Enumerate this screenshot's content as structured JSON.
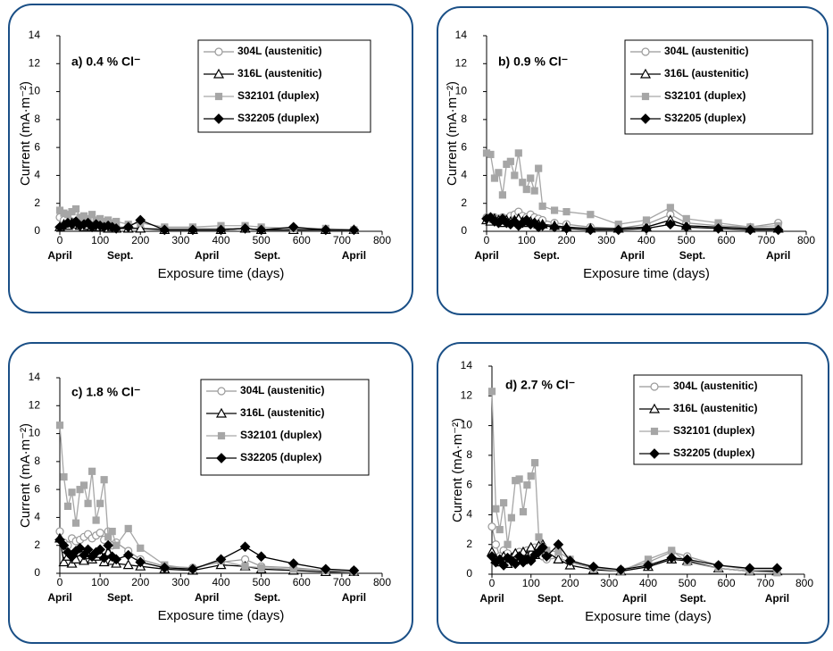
{
  "chart_data": [
    {
      "type": "line",
      "annotation": "a) 0.4 % Cl⁻",
      "x_label": "Exposure time (days)",
      "y_label": "Current (mA·m⁻²)",
      "x": [
        0,
        10,
        20,
        30,
        40,
        50,
        60,
        70,
        80,
        90,
        100,
        110,
        120,
        130,
        140,
        170,
        200,
        260,
        330,
        400,
        460,
        500,
        580,
        660,
        730
      ],
      "xlim": [
        0,
        800
      ],
      "xticks": [
        0,
        100,
        200,
        300,
        400,
        500,
        600,
        700,
        800
      ],
      "ylim": [
        0,
        14
      ],
      "yticks": [
        0,
        2,
        4,
        6,
        8,
        10,
        12,
        14
      ],
      "period_ticks": [
        {
          "value": 0,
          "label": "April"
        },
        {
          "value": 150,
          "label": "Sept."
        },
        {
          "value": 365,
          "label": "April"
        },
        {
          "value": 515,
          "label": "Sept."
        },
        {
          "value": 730,
          "label": "April"
        }
      ],
      "series": [
        {
          "name": "304L (austenitic)",
          "color": "#999999",
          "marker": "circle",
          "filled": false,
          "values": [
            1.0,
            0.8,
            0.6,
            0.7,
            0.6,
            0.5,
            0.5,
            0.4,
            0.4,
            0.4,
            0.3,
            0.4,
            0.3,
            0.3,
            0.3,
            0.3,
            0.2,
            0.2,
            0.2,
            0.2,
            0.2,
            0.1,
            0.1,
            0.1,
            0.1
          ]
        },
        {
          "name": "316L (austenitic)",
          "color": "#000000",
          "marker": "triangle",
          "filled": false,
          "values": [
            0.3,
            0.5,
            0.4,
            0.6,
            0.5,
            0.4,
            0.3,
            0.4,
            0.3,
            0.4,
            0.3,
            0.3,
            0.2,
            0.3,
            0.2,
            0.2,
            0.2,
            0.1,
            0.1,
            0.1,
            0.2,
            0.1,
            0.1,
            0.1,
            0.1
          ]
        },
        {
          "name": "S32101 (duplex)",
          "color": "#a6a6a6",
          "marker": "square",
          "filled": true,
          "values": [
            1.5,
            1.3,
            1.2,
            1.4,
            1.6,
            1.0,
            1.1,
            0.9,
            1.2,
            0.8,
            0.9,
            0.7,
            0.8,
            0.6,
            0.7,
            0.5,
            0.6,
            0.3,
            0.3,
            0.4,
            0.4,
            0.3,
            0.2,
            0.2,
            0.1
          ]
        },
        {
          "name": "S32205 (duplex)",
          "color": "#000000",
          "marker": "diamond",
          "filled": true,
          "values": [
            0.3,
            0.4,
            0.6,
            0.5,
            0.7,
            0.4,
            0.5,
            0.6,
            0.3,
            0.5,
            0.4,
            0.3,
            0.4,
            0.3,
            0.2,
            0.3,
            0.8,
            0.1,
            0.1,
            0.1,
            0.2,
            0.1,
            0.3,
            0.1,
            0.1
          ]
        }
      ]
    },
    {
      "type": "line",
      "annotation": "b) 0.9 % Cl⁻",
      "x_label": "Exposure time (days)",
      "y_label": "Current (mA·m⁻²)",
      "x": [
        0,
        10,
        20,
        30,
        40,
        50,
        60,
        70,
        80,
        90,
        100,
        110,
        120,
        130,
        140,
        170,
        200,
        260,
        330,
        400,
        460,
        500,
        580,
        660,
        730
      ],
      "xlim": [
        0,
        800
      ],
      "xticks": [
        0,
        100,
        200,
        300,
        400,
        500,
        600,
        700,
        800
      ],
      "ylim": [
        0,
        14
      ],
      "yticks": [
        0,
        2,
        4,
        6,
        8,
        10,
        12,
        14
      ],
      "period_ticks": [
        {
          "value": 0,
          "label": "April"
        },
        {
          "value": 150,
          "label": "Sept."
        },
        {
          "value": 365,
          "label": "April"
        },
        {
          "value": 515,
          "label": "Sept."
        },
        {
          "value": 730,
          "label": "April"
        }
      ],
      "series": [
        {
          "name": "304L (austenitic)",
          "color": "#999999",
          "marker": "circle",
          "filled": false,
          "values": [
            1.0,
            0.9,
            1.0,
            0.9,
            1.0,
            0.9,
            1.1,
            1.2,
            1.4,
            1.1,
            1.0,
            1.2,
            1.0,
            0.9,
            0.8,
            0.6,
            0.5,
            0.3,
            0.2,
            0.5,
            1.2,
            0.6,
            0.4,
            0.3,
            0.6
          ]
        },
        {
          "name": "316L (austenitic)",
          "color": "#000000",
          "marker": "triangle",
          "filled": false,
          "values": [
            0.8,
            0.7,
            0.9,
            0.8,
            0.6,
            0.8,
            0.7,
            0.8,
            0.9,
            0.7,
            0.6,
            0.7,
            0.6,
            0.5,
            0.5,
            0.4,
            0.3,
            0.2,
            0.2,
            0.3,
            0.8,
            0.4,
            0.3,
            0.2,
            0.2
          ]
        },
        {
          "name": "S32101 (duplex)",
          "color": "#a6a6a6",
          "marker": "square",
          "filled": true,
          "values": [
            5.6,
            5.5,
            3.8,
            4.2,
            2.6,
            4.8,
            5.0,
            4.0,
            5.6,
            3.5,
            3.0,
            3.8,
            2.9,
            4.5,
            1.8,
            1.5,
            1.4,
            1.2,
            0.5,
            0.8,
            1.7,
            0.9,
            0.6,
            0.3,
            0.4
          ]
        },
        {
          "name": "S32205 (duplex)",
          "color": "#000000",
          "marker": "diamond",
          "filled": true,
          "values": [
            0.9,
            1.0,
            0.7,
            0.6,
            0.9,
            0.6,
            0.5,
            0.7,
            0.4,
            0.6,
            0.8,
            0.5,
            0.6,
            0.3,
            0.4,
            0.3,
            0.2,
            0.1,
            0.1,
            0.2,
            0.5,
            0.3,
            0.2,
            0.1,
            0.1
          ]
        }
      ]
    },
    {
      "type": "line",
      "annotation": "c) 1.8 % Cl⁻",
      "x_label": "Exposure time (days)",
      "y_label": "Current (mA·m⁻²)",
      "x": [
        0,
        10,
        20,
        30,
        40,
        50,
        60,
        70,
        80,
        90,
        100,
        110,
        120,
        130,
        140,
        170,
        200,
        260,
        330,
        400,
        460,
        500,
        580,
        660,
        730
      ],
      "xlim": [
        0,
        800
      ],
      "xticks": [
        0,
        100,
        200,
        300,
        400,
        500,
        600,
        700,
        800
      ],
      "ylim": [
        0,
        14
      ],
      "yticks": [
        0,
        2,
        4,
        6,
        8,
        10,
        12,
        14
      ],
      "period_ticks": [
        {
          "value": 0,
          "label": "April"
        },
        {
          "value": 150,
          "label": "Sept."
        },
        {
          "value": 365,
          "label": "April"
        },
        {
          "value": 515,
          "label": "Sept."
        },
        {
          "value": 730,
          "label": "April"
        }
      ],
      "series": [
        {
          "name": "304L (austenitic)",
          "color": "#999999",
          "marker": "circle",
          "filled": false,
          "values": [
            3.0,
            2.2,
            2.0,
            2.5,
            2.3,
            2.4,
            2.6,
            2.8,
            2.5,
            2.7,
            2.9,
            2.4,
            3.0,
            2.0,
            2.2,
            1.6,
            1.0,
            0.5,
            0.4,
            0.8,
            1.0,
            0.5,
            0.4,
            0.2,
            0.2
          ]
        },
        {
          "name": "316L (austenitic)",
          "color": "#000000",
          "marker": "triangle",
          "filled": false,
          "values": [
            2.5,
            0.8,
            1.2,
            0.7,
            1.0,
            1.5,
            0.9,
            1.3,
            1.0,
            1.2,
            1.4,
            0.8,
            1.5,
            0.9,
            0.7,
            0.6,
            0.5,
            0.3,
            0.2,
            0.6,
            0.5,
            0.3,
            0.2,
            0.1,
            0.1
          ]
        },
        {
          "name": "S32101 (duplex)",
          "color": "#a6a6a6",
          "marker": "square",
          "filled": true,
          "values": [
            10.6,
            6.9,
            4.8,
            5.8,
            3.6,
            6.0,
            6.3,
            5.0,
            7.3,
            3.8,
            5.0,
            6.7,
            2.6,
            3.0,
            2.0,
            3.2,
            1.8,
            0.6,
            0.3,
            0.9,
            0.5,
            0.4,
            0.3,
            0.2,
            0.1
          ]
        },
        {
          "name": "S32205 (duplex)",
          "color": "#000000",
          "marker": "diamond",
          "filled": true,
          "values": [
            2.4,
            2.0,
            1.5,
            1.2,
            1.6,
            1.8,
            1.3,
            1.7,
            1.2,
            1.5,
            1.7,
            1.1,
            2.0,
            1.2,
            1.0,
            1.3,
            0.8,
            0.4,
            0.3,
            1.0,
            1.9,
            1.2,
            0.7,
            0.3,
            0.2
          ]
        }
      ]
    },
    {
      "type": "line",
      "annotation": "d) 2.7 % Cl⁻",
      "x_label": "Exposure time (days)",
      "y_label": "Current (mA·m⁻²)",
      "x": [
        0,
        10,
        20,
        30,
        40,
        50,
        60,
        70,
        80,
        90,
        100,
        110,
        120,
        130,
        140,
        170,
        200,
        260,
        330,
        400,
        460,
        500,
        580,
        660,
        730
      ],
      "xlim": [
        0,
        800
      ],
      "xticks": [
        0,
        100,
        200,
        300,
        400,
        500,
        600,
        700,
        800
      ],
      "ylim": [
        0,
        14
      ],
      "yticks": [
        0,
        2,
        4,
        6,
        8,
        10,
        12,
        14
      ],
      "period_ticks": [
        {
          "value": 0,
          "label": "April"
        },
        {
          "value": 150,
          "label": "Sept."
        },
        {
          "value": 365,
          "label": "April"
        },
        {
          "value": 515,
          "label": "Sept."
        },
        {
          "value": 730,
          "label": "April"
        }
      ],
      "series": [
        {
          "name": "304L (austenitic)",
          "color": "#999999",
          "marker": "circle",
          "filled": false,
          "values": [
            3.2,
            2.0,
            1.2,
            1.6,
            1.4,
            1.0,
            1.3,
            1.5,
            1.2,
            1.6,
            1.3,
            1.8,
            1.4,
            1.2,
            1.0,
            1.1,
            0.8,
            0.4,
            0.3,
            0.8,
            1.5,
            1.2,
            0.6,
            0.3,
            0.3
          ]
        },
        {
          "name": "316L (austenitic)",
          "color": "#000000",
          "marker": "triangle",
          "filled": false,
          "values": [
            1.5,
            1.0,
            0.8,
            1.2,
            0.7,
            1.1,
            1.4,
            1.0,
            1.5,
            1.2,
            1.8,
            1.3,
            1.9,
            2.0,
            1.5,
            1.0,
            0.6,
            0.3,
            0.2,
            0.5,
            1.0,
            0.9,
            0.4,
            0.2,
            0.2
          ]
        },
        {
          "name": "S32101 (duplex)",
          "color": "#a6a6a6",
          "marker": "square",
          "filled": true,
          "values": [
            12.3,
            4.4,
            3.0,
            4.8,
            2.0,
            3.8,
            6.3,
            6.4,
            4.2,
            6.0,
            6.6,
            7.5,
            2.5,
            1.8,
            1.6,
            1.5,
            1.0,
            0.4,
            0.2,
            1.0,
            1.6,
            0.8,
            0.4,
            0.2,
            0.1
          ]
        },
        {
          "name": "S32205 (duplex)",
          "color": "#000000",
          "marker": "diamond",
          "filled": true,
          "values": [
            1.2,
            0.8,
            1.0,
            0.6,
            1.1,
            0.9,
            0.7,
            1.2,
            0.8,
            1.0,
            0.9,
            1.3,
            1.5,
            1.8,
            1.2,
            2.0,
            0.9,
            0.5,
            0.3,
            0.6,
            1.1,
            1.0,
            0.6,
            0.4,
            0.4
          ]
        }
      ]
    }
  ]
}
